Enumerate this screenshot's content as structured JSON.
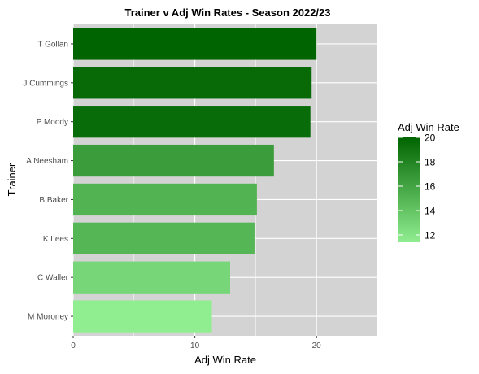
{
  "chart_data": {
    "type": "bar",
    "orientation": "horizontal",
    "title": "Trainer v Adj Win Rates - Season 2022/23",
    "xlabel": "Adj Win Rate",
    "ylabel": "Trainer",
    "categories": [
      "T Gollan",
      "J Cummings",
      "P Moody",
      "A Neesham",
      "B Baker",
      "K Lees",
      "C Waller",
      "M Moroney"
    ],
    "values": [
      20.0,
      19.6,
      19.5,
      16.5,
      15.1,
      14.9,
      12.9,
      11.4
    ],
    "xlim": [
      0,
      25
    ],
    "x_ticks": [
      0,
      10,
      20
    ],
    "grid": true,
    "legend": {
      "title": "Adj Win Rate",
      "position": "right",
      "ticks": [
        20,
        18,
        16,
        14,
        12
      ],
      "color_low": "#90ee90",
      "color_high": "#006400",
      "range": [
        11.4,
        20.0
      ]
    },
    "panel_color": "#d3d3d3"
  }
}
